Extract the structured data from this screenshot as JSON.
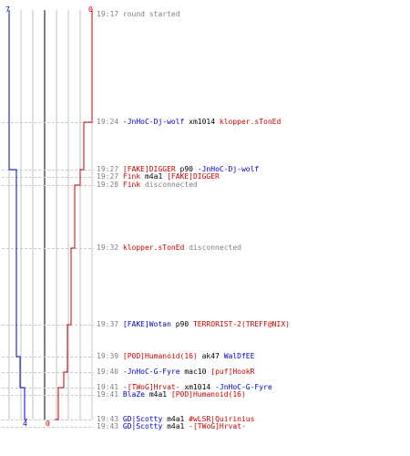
{
  "team_counts": {
    "blue_start": "7",
    "red_start": "0",
    "blue_end": "4",
    "red_end": "0"
  },
  "colors": {
    "blue": "#0000cc",
    "red": "#cc0000",
    "time": "#808080",
    "grid": "#c0c0c0",
    "guide": "#c8c8c8"
  },
  "events": [
    {
      "time": "19:17",
      "parts": [
        {
          "t": "round started",
          "c": "gray"
        }
      ]
    },
    {
      "time": "19:24",
      "parts": [
        {
          "t": "-JnHoC-Dj-wolf",
          "c": "blue"
        },
        {
          "t": " xm1014 ",
          "c": "dark"
        },
        {
          "t": "klopper.sTonEd",
          "c": "red"
        }
      ]
    },
    {
      "time": "19:27",
      "parts": [
        {
          "t": "[FAKE]DIGGER",
          "c": "red"
        },
        {
          "t": " p90 ",
          "c": "dark"
        },
        {
          "t": "-JnHoC-Dj-wolf",
          "c": "blue"
        }
      ]
    },
    {
      "time": "19:27",
      "parts": [
        {
          "t": "Fink",
          "c": "red"
        },
        {
          "t": " m4a1 ",
          "c": "dark"
        },
        {
          "t": "[FAKE]DIGGER",
          "c": "red"
        }
      ]
    },
    {
      "time": "19:28",
      "parts": [
        {
          "t": "Fink",
          "c": "red"
        },
        {
          "t": " disconnected",
          "c": "gray"
        }
      ]
    },
    {
      "time": "19:32",
      "parts": [
        {
          "t": "klopper.sTonEd",
          "c": "red"
        },
        {
          "t": " disconnected",
          "c": "gray"
        }
      ]
    },
    {
      "time": "19:37",
      "parts": [
        {
          "t": "[FAKE]Wotan",
          "c": "blue"
        },
        {
          "t": " p90 ",
          "c": "dark"
        },
        {
          "t": "TERRORIST-2(TREFF@NIX)",
          "c": "red"
        }
      ]
    },
    {
      "time": "19:39",
      "parts": [
        {
          "t": "[P0D]Humanoid(16)",
          "c": "red"
        },
        {
          "t": " ak47 ",
          "c": "dark"
        },
        {
          "t": "WalDfEE",
          "c": "blue"
        }
      ]
    },
    {
      "time": "19:40",
      "parts": [
        {
          "t": "-JnHoC-G-Fyre",
          "c": "blue"
        },
        {
          "t": " mac10 ",
          "c": "dark"
        },
        {
          "t": "[puf]HookR",
          "c": "red"
        }
      ]
    },
    {
      "time": "19:41",
      "parts": [
        {
          "t": "-[TWoG]Hrvat-",
          "c": "red"
        },
        {
          "t": " xm1014 ",
          "c": "dark"
        },
        {
          "t": "-JnHoC-G-Fyre",
          "c": "blue"
        }
      ]
    },
    {
      "time": "19:41",
      "parts": [
        {
          "t": "BlaZe",
          "c": "blue"
        },
        {
          "t": " m4a1 ",
          "c": "dark"
        },
        {
          "t": "[P0D]Humanoid(16)",
          "c": "red"
        }
      ]
    },
    {
      "time": "19:43",
      "parts": [
        {
          "t": "GD|Scotty",
          "c": "blue"
        },
        {
          "t": " m4a1 ",
          "c": "dark"
        },
        {
          "t": "#wLSR|Quirinius",
          "c": "red"
        }
      ]
    },
    {
      "time": "19:43",
      "parts": [
        {
          "t": "GD|Scotty",
          "c": "blue"
        },
        {
          "t": " m4a1 ",
          "c": "dark"
        },
        {
          "t": "-[TWoG]Hrvat-",
          "c": "red"
        }
      ]
    }
  ]
}
